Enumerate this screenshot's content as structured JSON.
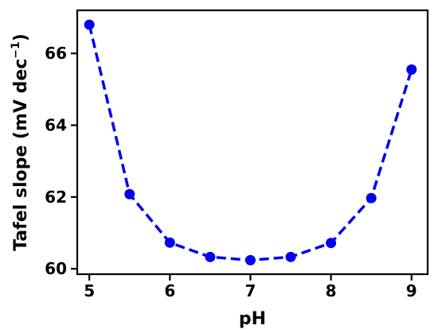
{
  "chart_data": {
    "type": "line",
    "title": "",
    "xlabel": "pH",
    "ylabel": {
      "prefix": "Tafel slope (mV dec",
      "exponent": "−1",
      "suffix": ")"
    },
    "xlim": [
      4.85,
      9.2
    ],
    "ylim": [
      59.85,
      67.2
    ],
    "xticks": [
      5,
      6,
      7,
      8,
      9
    ],
    "yticks": [
      60,
      62,
      64,
      66
    ],
    "grid": false,
    "series": [
      {
        "color": "#0000ee",
        "marker": "circle",
        "linestyle": "dashed",
        "x": [
          5,
          5.5,
          6,
          6.5,
          7,
          7.5,
          8,
          8.5,
          9
        ],
        "y": [
          66.8,
          62.08,
          60.73,
          60.33,
          60.24,
          60.33,
          60.72,
          61.97,
          65.55
        ]
      }
    ]
  }
}
